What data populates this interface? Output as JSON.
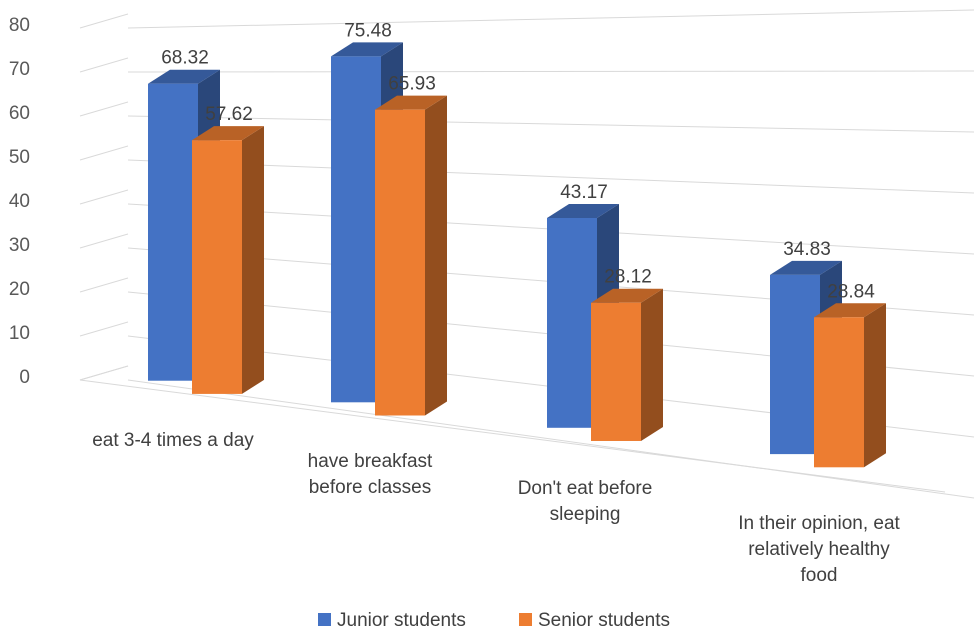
{
  "chart_data": {
    "type": "bar",
    "title": "",
    "xlabel": "",
    "ylabel": "",
    "ylim": [
      0,
      80
    ],
    "yticks": [
      0,
      10,
      20,
      30,
      40,
      50,
      60,
      70,
      80
    ],
    "yticks_labels": [
      "0",
      "10",
      "20",
      "30",
      "40",
      "50",
      "60",
      "70",
      "80"
    ],
    "grid": true,
    "style": "3d-clustered-column",
    "legend_position": "bottom",
    "categories": [
      [
        "eat 3-4 times a day"
      ],
      [
        "have breakfast",
        "before classes"
      ],
      [
        "Don't eat before",
        "sleeping"
      ],
      [
        "In their opinion, eat",
        "relatively healthy",
        "food"
      ]
    ],
    "series": [
      {
        "name": "Junior students",
        "color": "#4472C4",
        "values": [
          68.32,
          75.48,
          43.17,
          34.83
        ],
        "labels": [
          "68.32",
          "75.48",
          "43.17",
          "34.83"
        ]
      },
      {
        "name": "Senior students",
        "color": "#ED7D31",
        "values": [
          57.62,
          65.93,
          28.12,
          28.84
        ],
        "labels": [
          "57.62",
          "65.93",
          "28.12",
          "28.84"
        ]
      }
    ]
  }
}
